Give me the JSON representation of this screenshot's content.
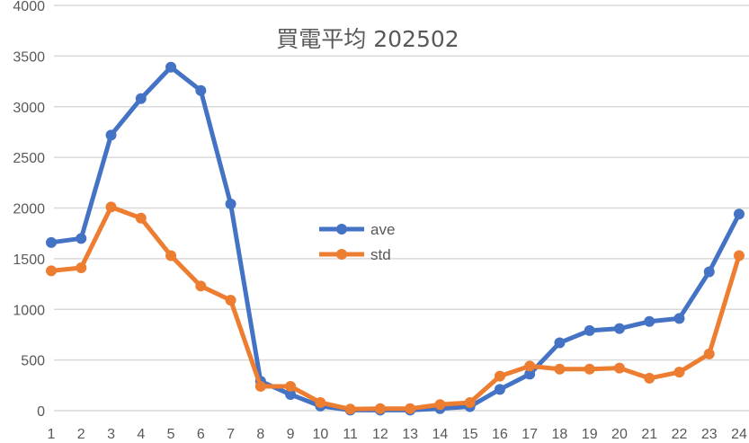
{
  "chart_data": {
    "type": "line",
    "title": "買電平均 202502",
    "xlabel": "",
    "ylabel": "",
    "x": [
      1,
      2,
      3,
      4,
      5,
      6,
      7,
      8,
      9,
      10,
      11,
      12,
      13,
      14,
      15,
      16,
      17,
      18,
      19,
      20,
      21,
      22,
      23,
      24
    ],
    "yticks": [
      0,
      500,
      1000,
      1500,
      2000,
      2500,
      3000,
      3500,
      4000
    ],
    "ylim": [
      0,
      4000
    ],
    "grid": true,
    "legend_position": "inside-center",
    "series": [
      {
        "name": "ave",
        "color": "#4472C4",
        "values": [
          1660,
          1700,
          2720,
          3080,
          3390,
          3160,
          2040,
          290,
          160,
          45,
          5,
          5,
          5,
          20,
          40,
          210,
          360,
          670,
          790,
          810,
          880,
          910,
          1370,
          1940
        ]
      },
      {
        "name": "std",
        "color": "#ED7D31",
        "values": [
          1380,
          1410,
          2010,
          1900,
          1530,
          1230,
          1090,
          240,
          240,
          80,
          15,
          20,
          20,
          60,
          80,
          340,
          440,
          410,
          410,
          420,
          320,
          380,
          560,
          1530
        ]
      }
    ]
  },
  "colors": {
    "grid": "#D9D9D9",
    "text": "#595959",
    "background": "#FFFFFF"
  }
}
